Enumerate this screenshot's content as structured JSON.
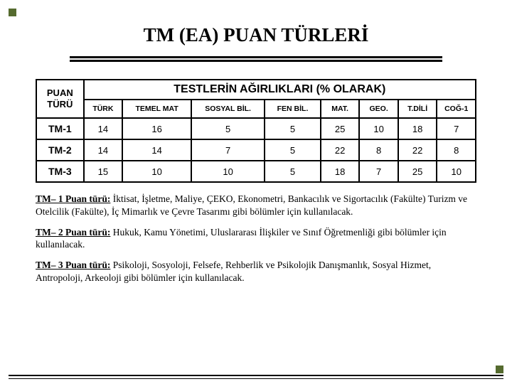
{
  "title": "TM (EA) PUAN TÜRLERİ",
  "table": {
    "row_header_label": "PUAN TÜRÜ",
    "banner": "TESTLERİN AĞIRLIKLARI (% OLARAK)",
    "columns": [
      "TÜRK",
      "TEMEL MAT",
      "SOSYAL BİL.",
      "FEN BİL.",
      "MAT.",
      "GEO.",
      "T.DİLİ",
      "COĞ-1"
    ],
    "rows": [
      {
        "label": "TM-1",
        "vals": [
          "14",
          "16",
          "5",
          "5",
          "25",
          "10",
          "18",
          "7"
        ]
      },
      {
        "label": "TM-2",
        "vals": [
          "14",
          "14",
          "7",
          "5",
          "22",
          "8",
          "22",
          "8"
        ]
      },
      {
        "label": "TM-3",
        "vals": [
          "15",
          "10",
          "10",
          "5",
          "18",
          "7",
          "25",
          "10"
        ]
      }
    ],
    "header_bg": "#ffffff",
    "cell_bg": "#ffffff",
    "border_color": "#000000",
    "font_color": "#000000"
  },
  "notes": [
    {
      "lead": "TM– 1 Puan türü:",
      "body": " İktisat, İşletme, Maliye, ÇEKO, Ekonometri, Bankacılık ve Sigortacılık (Fakülte) Turizm ve Otelcilik (Fakülte), İç Mimarlık ve Çevre Tasarımı gibi bölümler için kullanılacak."
    },
    {
      "lead": "TM– 2 Puan türü:",
      "body": " Hukuk, Kamu Yönetimi, Uluslararası İlişkiler ve Sınıf Öğretmenliği gibi bölümler için kullanılacak."
    },
    {
      "lead": "TM– 3 Puan türü:",
      "body": " Psikoloji, Sosyoloji, Felsefe, Rehberlik ve Psikolojik Danışmanlık, Sosyal Hizmet, Antropoloji, Arkeoloji gibi bölümler için kullanılacak."
    }
  ]
}
